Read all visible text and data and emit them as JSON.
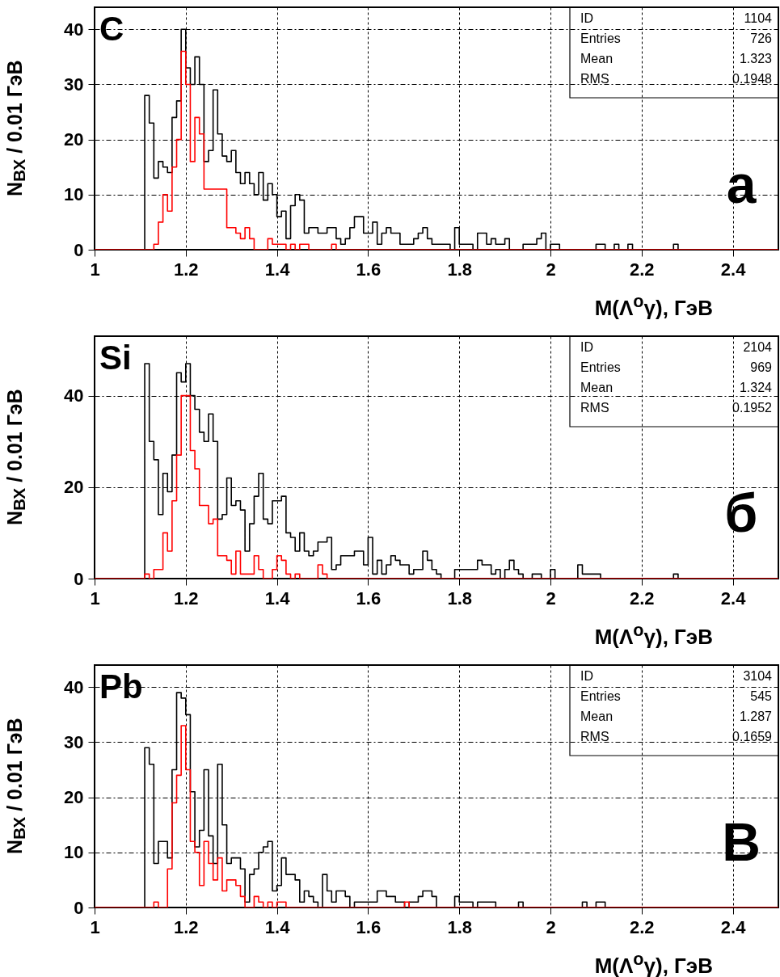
{
  "chart_data": [
    {
      "type": "histogram",
      "xlabel": "M(Λ$^{o}$γ), ГэВ",
      "ylabel": "N$_{ВХ}$ / 0.01 ГэВ",
      "annotations": [
        "C",
        "а",
        "ID",
        "1104",
        "Entries",
        "726",
        "Mean",
        "1.323",
        "RMS",
        "0.1948"
      ],
      "xlim": [
        1,
        2.5
      ],
      "xticks": [
        1,
        1.2,
        1.4,
        1.6,
        1.8,
        2,
        2.2,
        2.4
      ],
      "ylim": [
        0,
        44
      ],
      "yticks": [
        0,
        10,
        20,
        30,
        40
      ],
      "grid": true,
      "bins": [
        1,
        1.01,
        1.02,
        1.03,
        1.04,
        1.05,
        1.06,
        1.07,
        1.08,
        1.09,
        1.1,
        1.11,
        1.12,
        1.13,
        1.14,
        1.15,
        1.16,
        1.17,
        1.18,
        1.19,
        1.2,
        1.21,
        1.22,
        1.23,
        1.24,
        1.25,
        1.26,
        1.27,
        1.28,
        1.29,
        1.3,
        1.31,
        1.32,
        1.33,
        1.34,
        1.35,
        1.36,
        1.37,
        1.38,
        1.39,
        1.4,
        1.41,
        1.42,
        1.43,
        1.44,
        1.45,
        1.46,
        1.47,
        1.48,
        1.49,
        1.5,
        1.51,
        1.52,
        1.53,
        1.54,
        1.55,
        1.56,
        1.57,
        1.58,
        1.59,
        1.6,
        1.61,
        1.62,
        1.63,
        1.64,
        1.65,
        1.66,
        1.67,
        1.68,
        1.69,
        1.7,
        1.71,
        1.72,
        1.73,
        1.74,
        1.75,
        1.76,
        1.77,
        1.78,
        1.79,
        1.8,
        1.81,
        1.82,
        1.83,
        1.84,
        1.85,
        1.86,
        1.87,
        1.88,
        1.89,
        1.9,
        1.91,
        1.92,
        1.93,
        1.94,
        1.95,
        1.96,
        1.97,
        1.98,
        1.99,
        2,
        2.01,
        2.02,
        2.03,
        2.04,
        2.05,
        2.06,
        2.07,
        2.08,
        2.09,
        2.1,
        2.11,
        2.12,
        2.13,
        2.14,
        2.15,
        2.16,
        2.17,
        2.18,
        2.19,
        2.2,
        2.21,
        2.22,
        2.23,
        2.24,
        2.25,
        2.26,
        2.27,
        2.28,
        2.29,
        2.3,
        2.31,
        2.32,
        2.33,
        2.34,
        2.35,
        2.36,
        2.37,
        2.38,
        2.39,
        2.4,
        2.41,
        2.42,
        2.43,
        2.44,
        2.45,
        2.46,
        2.47,
        2.48,
        2.49,
        2.5
      ],
      "series": [
        {
          "color": "#000000",
          "values": [
            0,
            0,
            0,
            0,
            0,
            0,
            0,
            0,
            0,
            0,
            0,
            28,
            23,
            13,
            16,
            15,
            14,
            24,
            27,
            40,
            33,
            30,
            35,
            30,
            16,
            18,
            29,
            21,
            17,
            16,
            18,
            14,
            12,
            14,
            12,
            10,
            14,
            9,
            12,
            10,
            6,
            7,
            2,
            8,
            10,
            9,
            3,
            4,
            4,
            3,
            3,
            4,
            4,
            2,
            1,
            2,
            4,
            6,
            6,
            3,
            3,
            5,
            1,
            3,
            4,
            3,
            3,
            1,
            1,
            1,
            2,
            3,
            4,
            2,
            1,
            1,
            1,
            1,
            0,
            4,
            1,
            1,
            1,
            0,
            3,
            3,
            1,
            2,
            1,
            1,
            2,
            0,
            0,
            0,
            1,
            1,
            1,
            2,
            3,
            0,
            1,
            1,
            0,
            0,
            0,
            0,
            0,
            0,
            0,
            0,
            1,
            1,
            0,
            0,
            1,
            0,
            0,
            1,
            0,
            0,
            0,
            0,
            0,
            0,
            0,
            0,
            0,
            1,
            0,
            0,
            0,
            0,
            0,
            0,
            0,
            0,
            0,
            0,
            0,
            0,
            0,
            0,
            0,
            0,
            0,
            0,
            0,
            0,
            0,
            0
          ]
        },
        {
          "color": "#ff0000",
          "values": [
            0,
            0,
            0,
            0,
            0,
            0,
            0,
            0,
            0,
            0,
            0,
            0,
            0,
            1,
            5,
            10,
            7,
            15,
            20,
            36,
            30,
            16,
            24,
            21,
            11,
            11,
            11,
            11,
            11,
            4,
            4,
            3,
            2,
            4,
            2,
            0,
            0,
            0,
            2,
            1,
            1,
            1,
            0,
            1,
            0,
            1,
            1,
            0,
            0,
            0,
            0,
            0,
            1,
            0,
            0,
            0,
            0,
            0,
            0,
            0,
            0,
            0,
            0,
            0,
            0,
            0,
            0,
            0,
            0,
            0,
            0,
            0,
            0,
            0,
            0,
            0,
            0,
            0,
            0,
            0,
            0,
            0,
            0,
            0,
            0,
            0,
            0,
            0,
            0,
            0,
            0,
            0,
            0,
            0,
            0,
            0,
            0,
            0,
            0,
            0,
            0,
            0,
            0,
            0,
            0,
            0,
            0,
            0,
            0,
            0,
            0,
            0,
            0,
            0,
            0,
            0,
            0,
            0,
            0,
            0,
            0,
            0,
            0,
            0,
            0,
            0,
            0,
            0,
            0,
            0,
            0,
            0,
            0,
            0,
            0,
            0,
            0,
            0,
            0,
            0,
            0,
            0,
            0,
            0,
            0,
            0,
            0,
            0,
            0,
            0
          ]
        }
      ]
    },
    {
      "type": "histogram",
      "xlabel": "M(Λ$^{o}$γ), ГэВ",
      "ylabel": "N$_{ВХ}$ / 0.01 ГэВ",
      "annotations": [
        "Si",
        "б",
        "ID",
        "2104",
        "Entries",
        "969",
        "Mean",
        "1.324",
        "RMS",
        "0.1952"
      ],
      "xlim": [
        1,
        2.5
      ],
      "xticks": [
        1,
        1.2,
        1.4,
        1.6,
        1.8,
        2,
        2.2,
        2.4
      ],
      "ylim": [
        0,
        53
      ],
      "yticks": [
        0,
        20,
        40
      ],
      "grid": true,
      "bins": [
        1,
        1.01,
        1.02,
        1.03,
        1.04,
        1.05,
        1.06,
        1.07,
        1.08,
        1.09,
        1.1,
        1.11,
        1.12,
        1.13,
        1.14,
        1.15,
        1.16,
        1.17,
        1.18,
        1.19,
        1.2,
        1.21,
        1.22,
        1.23,
        1.24,
        1.25,
        1.26,
        1.27,
        1.28,
        1.29,
        1.3,
        1.31,
        1.32,
        1.33,
        1.34,
        1.35,
        1.36,
        1.37,
        1.38,
        1.39,
        1.4,
        1.41,
        1.42,
        1.43,
        1.44,
        1.45,
        1.46,
        1.47,
        1.48,
        1.49,
        1.5,
        1.51,
        1.52,
        1.53,
        1.54,
        1.55,
        1.56,
        1.57,
        1.58,
        1.59,
        1.6,
        1.61,
        1.62,
        1.63,
        1.64,
        1.65,
        1.66,
        1.67,
        1.68,
        1.69,
        1.7,
        1.71,
        1.72,
        1.73,
        1.74,
        1.75,
        1.76,
        1.77,
        1.78,
        1.79,
        1.8,
        1.81,
        1.82,
        1.83,
        1.84,
        1.85,
        1.86,
        1.87,
        1.88,
        1.89,
        1.9,
        1.91,
        1.92,
        1.93,
        1.94,
        1.95,
        1.96,
        1.97,
        1.98,
        1.99,
        2,
        2.01,
        2.02,
        2.03,
        2.04,
        2.05,
        2.06,
        2.07,
        2.08,
        2.09,
        2.1,
        2.11,
        2.12,
        2.13,
        2.14,
        2.15,
        2.16,
        2.17,
        2.18,
        2.19,
        2.2,
        2.21,
        2.22,
        2.23,
        2.24,
        2.25,
        2.26,
        2.27,
        2.28,
        2.29,
        2.3,
        2.31,
        2.32,
        2.33,
        2.34,
        2.35,
        2.36,
        2.37,
        2.38,
        2.39,
        2.4,
        2.41,
        2.42,
        2.43,
        2.44,
        2.45,
        2.46,
        2.47,
        2.48,
        2.49,
        2.5
      ],
      "series": [
        {
          "color": "#000000",
          "values": [
            0,
            0,
            0,
            0,
            0,
            0,
            0,
            0,
            0,
            0,
            0,
            47,
            30,
            26,
            14,
            23,
            19,
            27,
            45,
            43,
            47,
            40,
            37,
            32,
            30,
            36,
            30,
            13,
            14,
            22,
            16,
            17,
            15,
            6,
            12,
            18,
            23,
            13,
            12,
            17,
            17,
            18,
            10,
            9,
            6,
            10,
            6,
            5,
            6,
            8,
            8,
            9,
            2,
            3,
            5,
            5,
            5,
            6,
            6,
            3,
            9,
            1,
            4,
            1,
            3,
            5,
            4,
            3,
            3,
            1,
            2,
            2,
            6,
            4,
            2,
            1,
            0,
            0,
            0,
            2,
            2,
            2,
            2,
            2,
            4,
            3,
            3,
            1,
            2,
            0,
            2,
            4,
            2,
            1,
            0,
            0,
            1,
            1,
            0,
            0,
            2,
            0,
            0,
            0,
            0,
            0,
            3,
            1,
            1,
            1,
            1,
            0,
            0,
            0,
            0,
            0,
            0,
            0,
            0,
            0,
            0,
            0,
            0,
            0,
            0,
            0,
            0,
            1,
            0,
            0,
            0,
            0,
            0,
            0,
            0,
            0,
            0,
            0,
            0,
            0,
            0,
            0,
            0,
            0,
            0,
            0,
            0,
            0,
            0,
            0
          ]
        },
        {
          "color": "#ff0000",
          "values": [
            0,
            0,
            0,
            0,
            0,
            0,
            0,
            0,
            0,
            0,
            0,
            1,
            0,
            2,
            2,
            10,
            6,
            17,
            27,
            40,
            40,
            28,
            24,
            16,
            16,
            12,
            13,
            5,
            5,
            4,
            1,
            6,
            1,
            1,
            1,
            5,
            2,
            0,
            0,
            2,
            5,
            4,
            1,
            0,
            1,
            0,
            0,
            0,
            0,
            3,
            1,
            0,
            0,
            0,
            0,
            0,
            0,
            0,
            0,
            0,
            0,
            0,
            0,
            0,
            0,
            0,
            0,
            0,
            0,
            0,
            0,
            0,
            0,
            0,
            0,
            0,
            0,
            0,
            0,
            0,
            0,
            0,
            0,
            0,
            0,
            0,
            0,
            0,
            0,
            0,
            0,
            0,
            0,
            0,
            0,
            0,
            0,
            0,
            0,
            0,
            0,
            0,
            0,
            0,
            0,
            0,
            0,
            0,
            0,
            0,
            0,
            0,
            0,
            0,
            0,
            0,
            0,
            0,
            0,
            0,
            0,
            0,
            0,
            0,
            0,
            0,
            0,
            0,
            0,
            0,
            0,
            0,
            0,
            0,
            0,
            0,
            0,
            0,
            0,
            0,
            0,
            0,
            0,
            0,
            0,
            0,
            0,
            0,
            0,
            0
          ]
        }
      ]
    },
    {
      "type": "histogram",
      "xlabel": "M(Λ$^{o}$γ), ГэВ",
      "ylabel": "N$_{ВХ}$ / 0.01 ГэВ",
      "annotations": [
        "Pb",
        "В",
        "ID",
        "3104",
        "Entries",
        "545",
        "Mean",
        "1.287",
        "RMS",
        "0.1659"
      ],
      "xlim": [
        1,
        2.5
      ],
      "xticks": [
        1,
        1.2,
        1.4,
        1.6,
        1.8,
        2,
        2.2,
        2.4
      ],
      "ylim": [
        0,
        44
      ],
      "yticks": [
        0,
        10,
        20,
        30,
        40
      ],
      "grid": true,
      "bins": [
        1,
        1.01,
        1.02,
        1.03,
        1.04,
        1.05,
        1.06,
        1.07,
        1.08,
        1.09,
        1.1,
        1.11,
        1.12,
        1.13,
        1.14,
        1.15,
        1.16,
        1.17,
        1.18,
        1.19,
        1.2,
        1.21,
        1.22,
        1.23,
        1.24,
        1.25,
        1.26,
        1.27,
        1.28,
        1.29,
        1.3,
        1.31,
        1.32,
        1.33,
        1.34,
        1.35,
        1.36,
        1.37,
        1.38,
        1.39,
        1.4,
        1.41,
        1.42,
        1.43,
        1.44,
        1.45,
        1.46,
        1.47,
        1.48,
        1.49,
        1.5,
        1.51,
        1.52,
        1.53,
        1.54,
        1.55,
        1.56,
        1.57,
        1.58,
        1.59,
        1.6,
        1.61,
        1.62,
        1.63,
        1.64,
        1.65,
        1.66,
        1.67,
        1.68,
        1.69,
        1.7,
        1.71,
        1.72,
        1.73,
        1.74,
        1.75,
        1.76,
        1.77,
        1.78,
        1.79,
        1.8,
        1.81,
        1.82,
        1.83,
        1.84,
        1.85,
        1.86,
        1.87,
        1.88,
        1.89,
        1.9,
        1.91,
        1.92,
        1.93,
        1.94,
        1.95,
        1.96,
        1.97,
        1.98,
        1.99,
        2,
        2.01,
        2.02,
        2.03,
        2.04,
        2.05,
        2.06,
        2.07,
        2.08,
        2.09,
        2.1,
        2.11,
        2.12,
        2.13,
        2.14,
        2.15,
        2.16,
        2.17,
        2.18,
        2.19,
        2.2,
        2.21,
        2.22,
        2.23,
        2.24,
        2.25,
        2.26,
        2.27,
        2.28,
        2.29,
        2.3,
        2.31,
        2.32,
        2.33,
        2.34,
        2.35,
        2.36,
        2.37,
        2.38,
        2.39,
        2.4,
        2.41,
        2.42,
        2.43,
        2.44,
        2.45,
        2.46,
        2.47,
        2.48,
        2.49,
        2.5
      ],
      "series": [
        {
          "color": "#000000",
          "values": [
            0,
            0,
            0,
            0,
            0,
            0,
            0,
            0,
            0,
            0,
            0,
            29,
            26,
            8,
            12,
            12,
            9,
            25,
            39,
            38,
            35,
            21,
            11,
            14,
            25,
            13,
            8,
            26,
            15,
            8,
            9,
            9,
            7,
            1,
            6,
            7,
            10,
            11,
            12,
            3,
            4,
            9,
            6,
            6,
            5,
            1,
            3,
            2,
            1,
            0,
            6,
            3,
            1,
            3,
            3,
            2,
            0,
            1,
            1,
            1,
            1,
            1,
            3,
            3,
            2,
            2,
            1,
            1,
            0,
            1,
            1,
            2,
            3,
            3,
            2,
            0,
            0,
            0,
            0,
            2,
            1,
            1,
            1,
            0,
            1,
            1,
            1,
            1,
            0,
            0,
            0,
            0,
            0,
            1,
            0,
            0,
            0,
            0,
            0,
            0,
            0,
            0,
            0,
            0,
            0,
            0,
            0,
            1,
            0,
            0,
            1,
            1,
            0,
            0,
            0,
            0,
            0,
            0,
            0,
            0,
            0,
            0,
            0,
            0,
            0,
            0,
            0,
            0,
            0,
            0,
            0,
            0,
            0,
            0,
            0,
            0,
            0,
            0,
            0,
            0,
            0,
            0,
            0,
            0,
            0,
            0,
            0,
            0,
            0,
            0
          ]
        },
        {
          "color": "#ff0000",
          "values": [
            0,
            0,
            0,
            0,
            0,
            0,
            0,
            0,
            0,
            0,
            0,
            0,
            0,
            1,
            0,
            0,
            7,
            19,
            24,
            33,
            25,
            12,
            10,
            4,
            12,
            8,
            5,
            9,
            3,
            5,
            5,
            4,
            2,
            0,
            0,
            2,
            1,
            0,
            1,
            0,
            1,
            1,
            0,
            0,
            0,
            0,
            0,
            0,
            0,
            0,
            0,
            0,
            0,
            0,
            0,
            0,
            0,
            0,
            0,
            0,
            0,
            0,
            0,
            0,
            0,
            0,
            0,
            0,
            1,
            0,
            0,
            0,
            0,
            0,
            0,
            0,
            0,
            0,
            0,
            0,
            0,
            0,
            0,
            0,
            0,
            0,
            0,
            0,
            0,
            0,
            0,
            0,
            0,
            0,
            0,
            0,
            0,
            0,
            0,
            0,
            0,
            0,
            0,
            0,
            0,
            0,
            0,
            0,
            0,
            0,
            0,
            0,
            0,
            0,
            0,
            0,
            0,
            0,
            0,
            0,
            0,
            0,
            0,
            0,
            0,
            0,
            0,
            0,
            0,
            0,
            0,
            0,
            0,
            0,
            0,
            0,
            0,
            0,
            0,
            0,
            0,
            0,
            0,
            0,
            0,
            0,
            0,
            0,
            0,
            0
          ]
        }
      ]
    }
  ]
}
